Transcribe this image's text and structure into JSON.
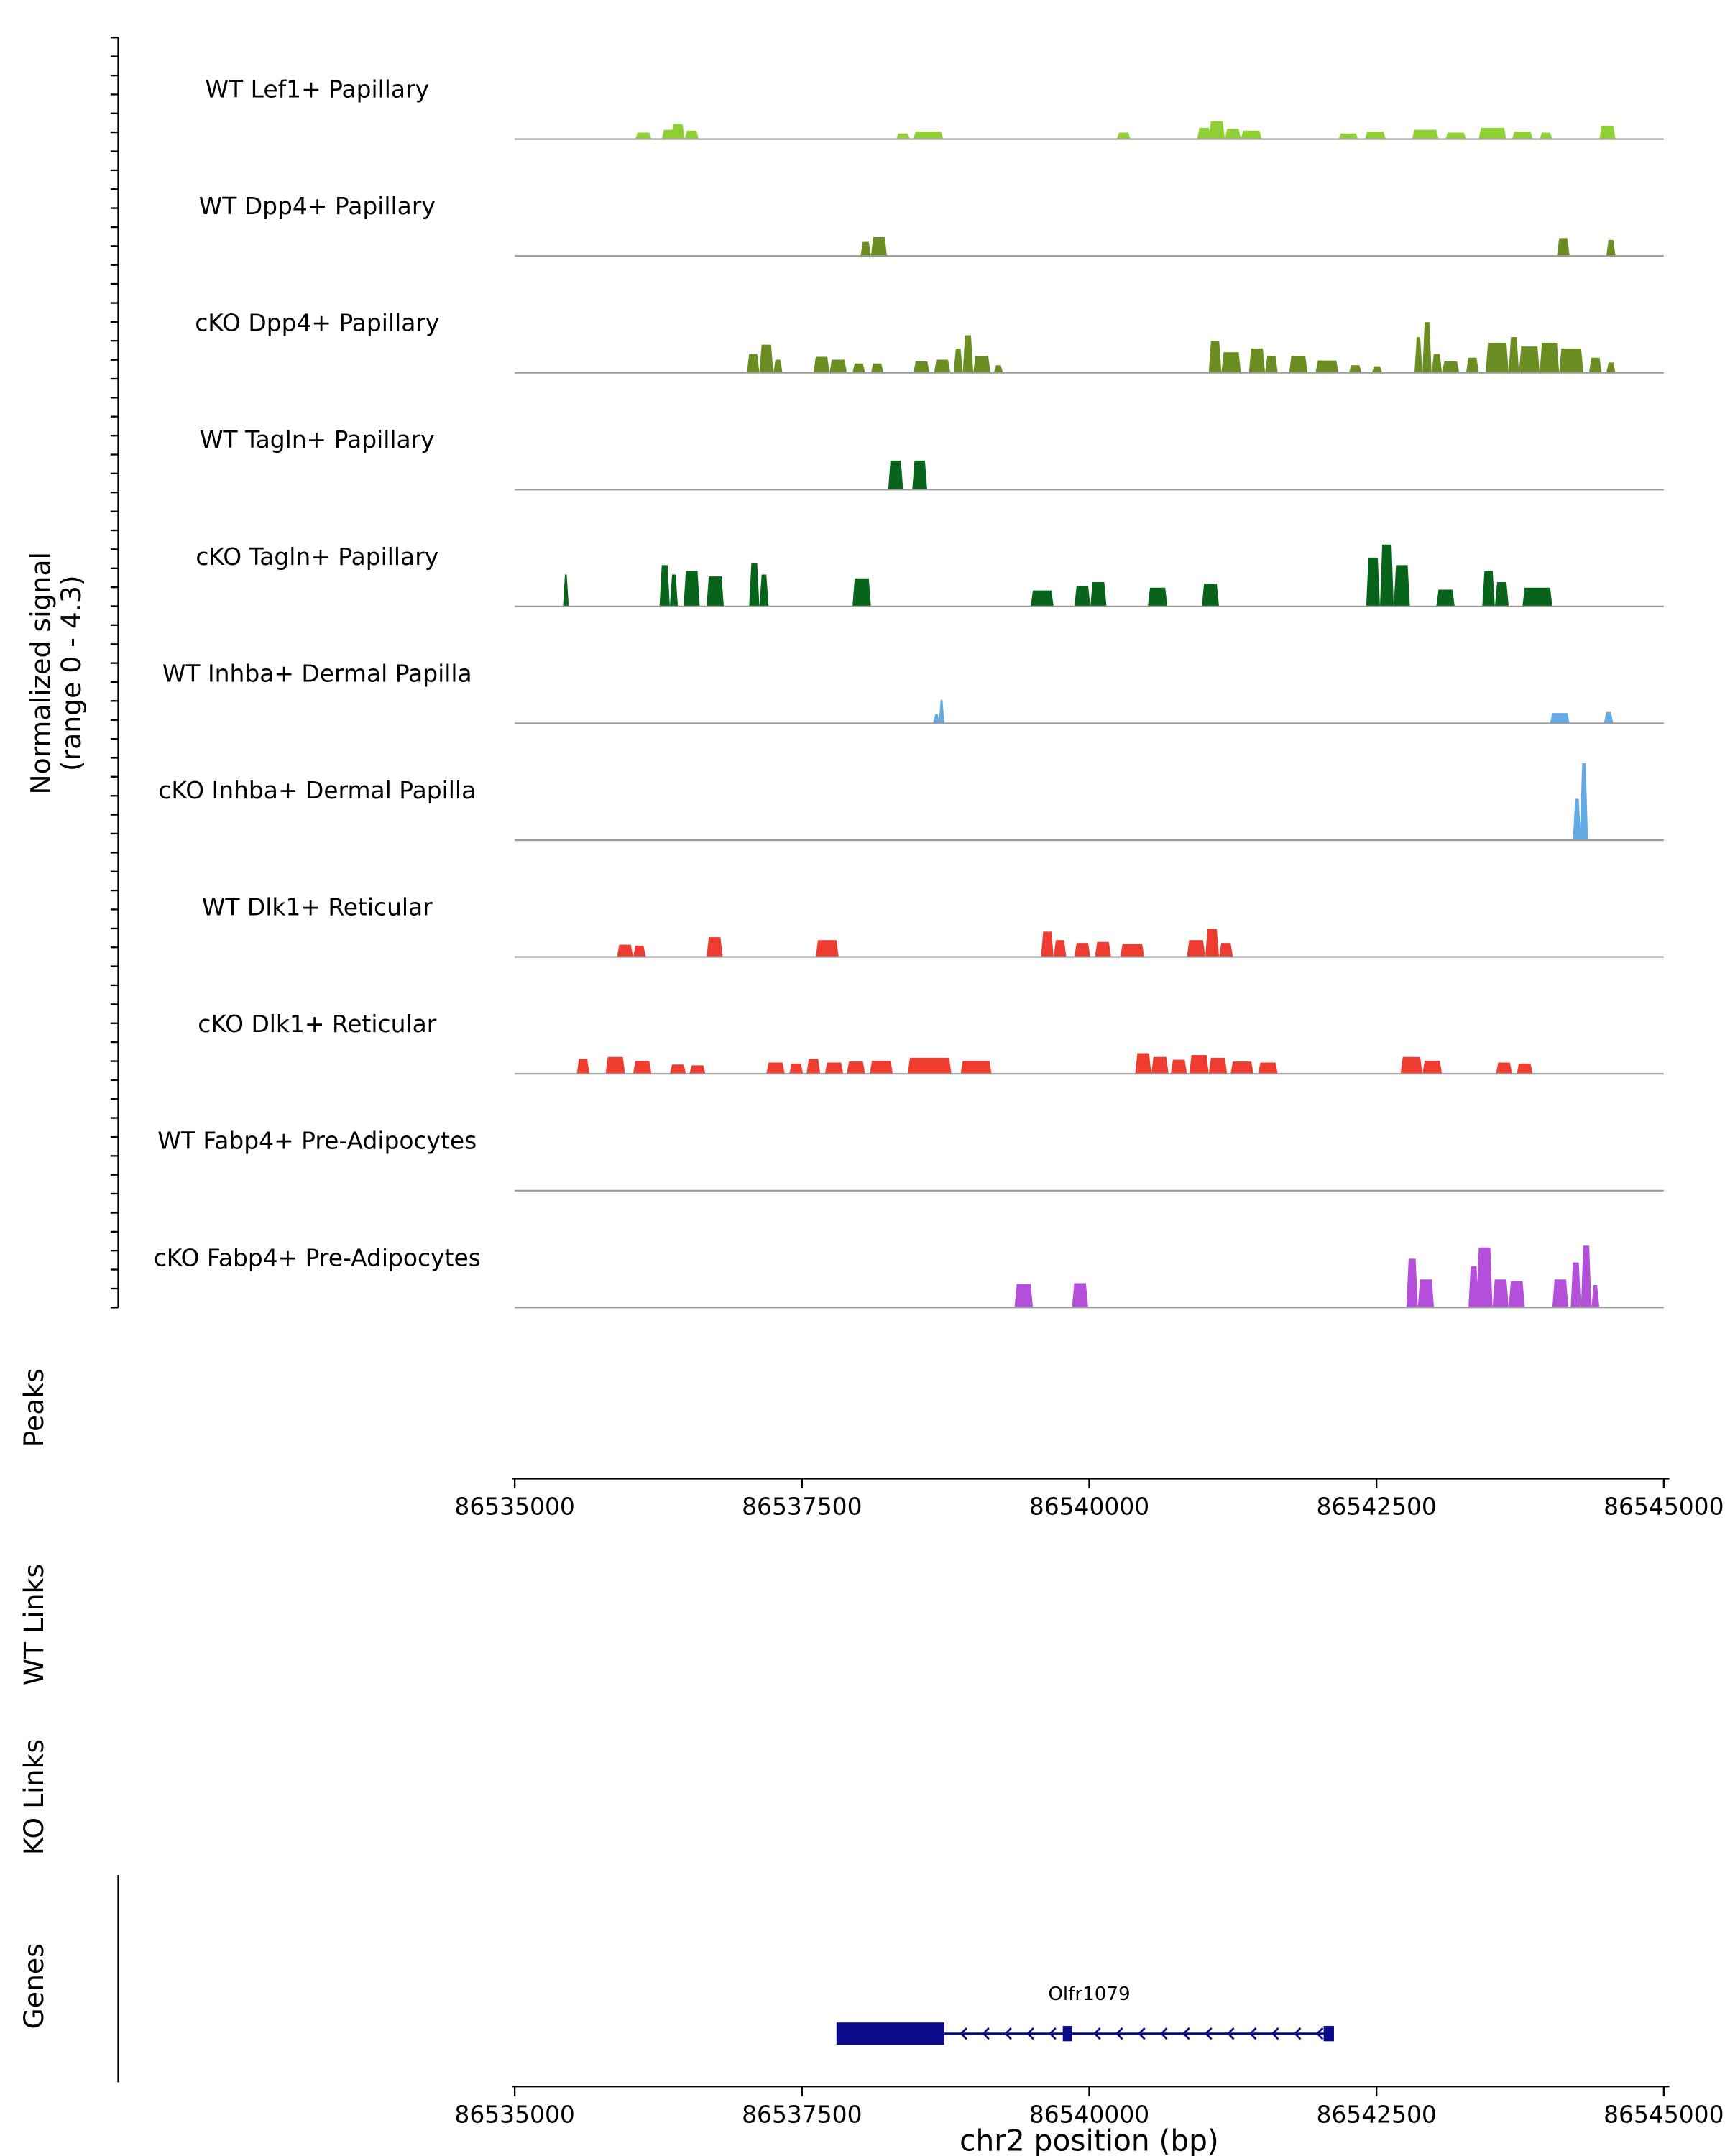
{
  "y_axis": {
    "label_line1": "Normalized signal",
    "label_line2": "(range 0 - 4.3)"
  },
  "sections": {
    "peaks_label": "Peaks",
    "wt_links_label": "WT Links",
    "ko_links_label": "KO Links",
    "genes_label": "Genes"
  },
  "x_axis": {
    "label": "chr2 position (bp)",
    "tick_labels": [
      "86535000",
      "86537500",
      "86540000",
      "86542500",
      "86545000"
    ],
    "tick_positions_bp": [
      86535000,
      86537500,
      86540000,
      86542500,
      86545000
    ],
    "domain_bp": [
      86535000,
      86545000
    ]
  },
  "chart_data": {
    "type": "area",
    "title": "",
    "x_domain_bp": [
      86535000,
      86545000
    ],
    "signal_range": [
      0,
      4.3
    ],
    "tracks": [
      {
        "name": "WT Lef1+ Papillary",
        "color": "#8fd132",
        "peaks": [
          [
            86536050,
            86536190,
            0.35
          ],
          [
            86536280,
            86536400,
            0.5
          ],
          [
            86536360,
            86536480,
            0.8
          ],
          [
            86536480,
            86536600,
            0.45
          ],
          [
            86538320,
            86538440,
            0.3
          ],
          [
            86538470,
            86538730,
            0.4
          ],
          [
            86540240,
            86540360,
            0.35
          ],
          [
            86540940,
            86541060,
            0.6
          ],
          [
            86541040,
            86541180,
            0.95
          ],
          [
            86541180,
            86541320,
            0.55
          ],
          [
            86541320,
            86541500,
            0.45
          ],
          [
            86542170,
            86542340,
            0.3
          ],
          [
            86542400,
            86542580,
            0.4
          ],
          [
            86542810,
            86543040,
            0.5
          ],
          [
            86543100,
            86543280,
            0.35
          ],
          [
            86543390,
            86543630,
            0.6
          ],
          [
            86543680,
            86543860,
            0.4
          ],
          [
            86543920,
            86544030,
            0.35
          ],
          [
            86544440,
            86544580,
            0.7
          ]
        ]
      },
      {
        "name": "WT Dpp4+ Papillary",
        "color": "#6b8e23",
        "peaks": [
          [
            86538010,
            86538100,
            0.75
          ],
          [
            86538100,
            86538240,
            1.0
          ],
          [
            86544070,
            86544180,
            0.95
          ],
          [
            86544500,
            86544580,
            0.85
          ]
        ]
      },
      {
        "name": "cKO Dpp4+ Papillary",
        "color": "#6b8e23",
        "peaks": [
          [
            86537020,
            86537130,
            1.0
          ],
          [
            86537130,
            86537250,
            1.5
          ],
          [
            86537250,
            86537330,
            0.7
          ],
          [
            86537600,
            86537740,
            0.85
          ],
          [
            86537740,
            86537890,
            0.7
          ],
          [
            86537940,
            86538050,
            0.5
          ],
          [
            86538100,
            86538210,
            0.5
          ],
          [
            86538470,
            86538610,
            0.6
          ],
          [
            86538650,
            86538790,
            0.7
          ],
          [
            86538820,
            86538900,
            1.3
          ],
          [
            86538900,
            86538990,
            2.0
          ],
          [
            86538990,
            86539140,
            0.9
          ],
          [
            86539170,
            86539250,
            0.4
          ],
          [
            86541040,
            86541150,
            1.7
          ],
          [
            86541150,
            86541320,
            1.1
          ],
          [
            86541390,
            86541530,
            1.3
          ],
          [
            86541530,
            86541640,
            0.9
          ],
          [
            86541740,
            86541900,
            0.9
          ],
          [
            86541970,
            86542170,
            0.65
          ],
          [
            86542260,
            86542370,
            0.4
          ],
          [
            86542460,
            86542550,
            0.35
          ],
          [
            86542830,
            86542900,
            1.9
          ],
          [
            86542900,
            86542980,
            2.7
          ],
          [
            86542980,
            86543070,
            1.0
          ],
          [
            86543070,
            86543220,
            0.6
          ],
          [
            86543280,
            86543390,
            0.8
          ],
          [
            86543450,
            86543650,
            1.6
          ],
          [
            86543650,
            86543740,
            1.9
          ],
          [
            86543740,
            86543920,
            1.4
          ],
          [
            86543920,
            86544090,
            1.6
          ],
          [
            86544090,
            86544300,
            1.3
          ],
          [
            86544350,
            86544460,
            0.8
          ],
          [
            86544500,
            86544580,
            0.55
          ]
        ]
      },
      {
        "name": "WT Tagln+ Papillary",
        "color": "#07641a",
        "peaks": [
          [
            86538250,
            86538380,
            1.55
          ],
          [
            86538460,
            86538590,
            1.55
          ]
        ]
      },
      {
        "name": "cKO Tagln+ Papillary",
        "color": "#07641a",
        "peaks": [
          [
            86535420,
            86535470,
            1.7
          ],
          [
            86536260,
            86536350,
            2.2
          ],
          [
            86536350,
            86536420,
            1.7
          ],
          [
            86536470,
            86536610,
            1.9
          ],
          [
            86536670,
            86536820,
            1.6
          ],
          [
            86537040,
            86537130,
            2.3
          ],
          [
            86537130,
            86537210,
            1.7
          ],
          [
            86537940,
            86538100,
            1.5
          ],
          [
            86539490,
            86539690,
            0.85
          ],
          [
            86539870,
            86540010,
            1.1
          ],
          [
            86540010,
            86540150,
            1.3
          ],
          [
            86540510,
            86540680,
            1.0
          ],
          [
            86540980,
            86541130,
            1.2
          ],
          [
            86542410,
            86542530,
            2.6
          ],
          [
            86542530,
            86542650,
            3.3
          ],
          [
            86542650,
            86542790,
            2.2
          ],
          [
            86543020,
            86543180,
            0.9
          ],
          [
            86543420,
            86543530,
            1.9
          ],
          [
            86543530,
            86543650,
            1.3
          ],
          [
            86543770,
            86544030,
            1.0
          ]
        ]
      },
      {
        "name": "WT Inhba+ Dermal Papilla",
        "color": "#64aae4",
        "peaks": [
          [
            86538640,
            86538700,
            0.5
          ],
          [
            86538690,
            86538740,
            1.25
          ],
          [
            86544010,
            86544180,
            0.55
          ],
          [
            86544480,
            86544560,
            0.6
          ]
        ]
      },
      {
        "name": "cKO Inhba+ Dermal Papilla",
        "color": "#64aae4",
        "peaks": [
          [
            86544210,
            86544280,
            2.2
          ],
          [
            86544270,
            86544340,
            4.1
          ]
        ]
      },
      {
        "name": "WT Dlk1+ Reticular",
        "color": "#ee3c30",
        "peaks": [
          [
            86535890,
            86536030,
            0.65
          ],
          [
            86536030,
            86536140,
            0.6
          ],
          [
            86536670,
            86536810,
            1.05
          ],
          [
            86537620,
            86537820,
            0.9
          ],
          [
            86539580,
            86539690,
            1.35
          ],
          [
            86539690,
            86539800,
            0.9
          ],
          [
            86539870,
            86540010,
            0.75
          ],
          [
            86540050,
            86540190,
            0.8
          ],
          [
            86540270,
            86540480,
            0.7
          ],
          [
            86540850,
            86541010,
            0.9
          ],
          [
            86541010,
            86541130,
            1.5
          ],
          [
            86541130,
            86541250,
            0.75
          ]
        ]
      },
      {
        "name": "cKO Dlk1+ Reticular",
        "color": "#ee3c30",
        "peaks": [
          [
            86535540,
            86535650,
            0.8
          ],
          [
            86535790,
            86535960,
            0.9
          ],
          [
            86536030,
            86536190,
            0.7
          ],
          [
            86536350,
            86536490,
            0.5
          ],
          [
            86536520,
            86536660,
            0.45
          ],
          [
            86537190,
            86537350,
            0.6
          ],
          [
            86537390,
            86537510,
            0.55
          ],
          [
            86537540,
            86537660,
            0.8
          ],
          [
            86537700,
            86537860,
            0.6
          ],
          [
            86537890,
            86538050,
            0.65
          ],
          [
            86538090,
            86538290,
            0.7
          ],
          [
            86538420,
            86538800,
            0.85
          ],
          [
            86538880,
            86539150,
            0.7
          ],
          [
            86540400,
            86540540,
            1.1
          ],
          [
            86540540,
            86540690,
            0.9
          ],
          [
            86540710,
            86540850,
            0.75
          ],
          [
            86540870,
            86541040,
            1.0
          ],
          [
            86541040,
            86541200,
            0.85
          ],
          [
            86541230,
            86541430,
            0.65
          ],
          [
            86541470,
            86541640,
            0.6
          ],
          [
            86542710,
            86542900,
            0.9
          ],
          [
            86542900,
            86543070,
            0.7
          ],
          [
            86543540,
            86543680,
            0.6
          ],
          [
            86543720,
            86543860,
            0.55
          ]
        ]
      },
      {
        "name": "WT Fabp4+ Pre-Adipocytes",
        "color": "#b44fdc",
        "peaks": []
      },
      {
        "name": "cKO Fabp4+ Pre-Adipocytes",
        "color": "#b44fdc",
        "peaks": [
          [
            86539350,
            86539510,
            1.25
          ],
          [
            86539850,
            86539990,
            1.3
          ],
          [
            86542760,
            86542860,
            2.6
          ],
          [
            86542860,
            86543000,
            1.5
          ],
          [
            86543300,
            86543390,
            2.2
          ],
          [
            86543370,
            86543510,
            3.2
          ],
          [
            86543510,
            86543650,
            1.5
          ],
          [
            86543650,
            86543790,
            1.4
          ],
          [
            86544030,
            86544170,
            1.5
          ],
          [
            86544190,
            86544280,
            2.4
          ],
          [
            86544280,
            86544370,
            3.3
          ],
          [
            86544370,
            86544440,
            1.2
          ]
        ]
      }
    ],
    "gene_track": {
      "gene_name": "Olfr1079",
      "color": "#0a0a8a",
      "strand": "-",
      "tx_start_bp": 86537800,
      "tx_end_bp": 86542130,
      "thick_exon_bp": [
        86537800,
        86538740
      ],
      "small_exons_bp": [
        [
          86539770,
          86539850
        ],
        [
          86542040,
          86542130
        ]
      ]
    }
  }
}
